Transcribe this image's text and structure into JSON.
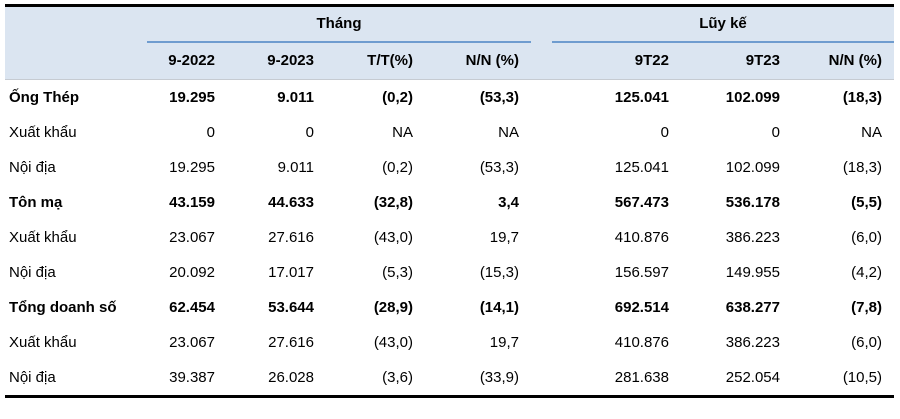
{
  "table": {
    "header": {
      "group_month": "Tháng",
      "group_cumulative": "Lũy kế",
      "month_columns": [
        "9-2022",
        "9-2023",
        "T/T(%)",
        "N/N (%)"
      ],
      "cumulative_columns": [
        "9T22",
        "9T23",
        "N/N (%)"
      ]
    },
    "rows": [
      {
        "label": "Ống Thép",
        "bold": true,
        "month": [
          "19.295",
          "9.011",
          "(0,2)",
          "(53,3)"
        ],
        "cumulative": [
          "125.041",
          "102.099",
          "(18,3)"
        ]
      },
      {
        "label": "Xuất khẩu",
        "bold": false,
        "month": [
          "0",
          "0",
          "NA",
          "NA"
        ],
        "cumulative": [
          "0",
          "0",
          "NA"
        ]
      },
      {
        "label": "Nội địa",
        "bold": false,
        "month": [
          "19.295",
          "9.011",
          "(0,2)",
          "(53,3)"
        ],
        "cumulative": [
          "125.041",
          "102.099",
          "(18,3)"
        ]
      },
      {
        "label": "Tôn mạ",
        "bold": true,
        "month": [
          "43.159",
          "44.633",
          "(32,8)",
          "3,4"
        ],
        "cumulative": [
          "567.473",
          "536.178",
          "(5,5)"
        ]
      },
      {
        "label": "Xuất khẩu",
        "bold": false,
        "month": [
          "23.067",
          "27.616",
          "(43,0)",
          "19,7"
        ],
        "cumulative": [
          "410.876",
          "386.223",
          "(6,0)"
        ]
      },
      {
        "label": "Nội địa",
        "bold": false,
        "month": [
          "20.092",
          "17.017",
          "(5,3)",
          "(15,3)"
        ],
        "cumulative": [
          "156.597",
          "149.955",
          "(4,2)"
        ]
      },
      {
        "label": "Tổng doanh số",
        "bold": true,
        "month": [
          "62.454",
          "53.644",
          "(28,9)",
          "(14,1)"
        ],
        "cumulative": [
          "692.514",
          "638.277",
          "(7,8)"
        ]
      },
      {
        "label": "Xuất khẩu",
        "bold": false,
        "month": [
          "23.067",
          "27.616",
          "(43,0)",
          "19,7"
        ],
        "cumulative": [
          "410.876",
          "386.223",
          "(6,0)"
        ]
      },
      {
        "label": "Nội địa",
        "bold": false,
        "month": [
          "39.387",
          "26.028",
          "(3,6)",
          "(33,9)"
        ],
        "cumulative": [
          "281.638",
          "252.054",
          "(10,5)"
        ]
      }
    ]
  },
  "colors": {
    "header_background": "#dbe5f1",
    "group_underline": "#6f9ccf",
    "frame_border": "#000000",
    "header_divider": "#c6cbd2",
    "text": "#000000"
  }
}
